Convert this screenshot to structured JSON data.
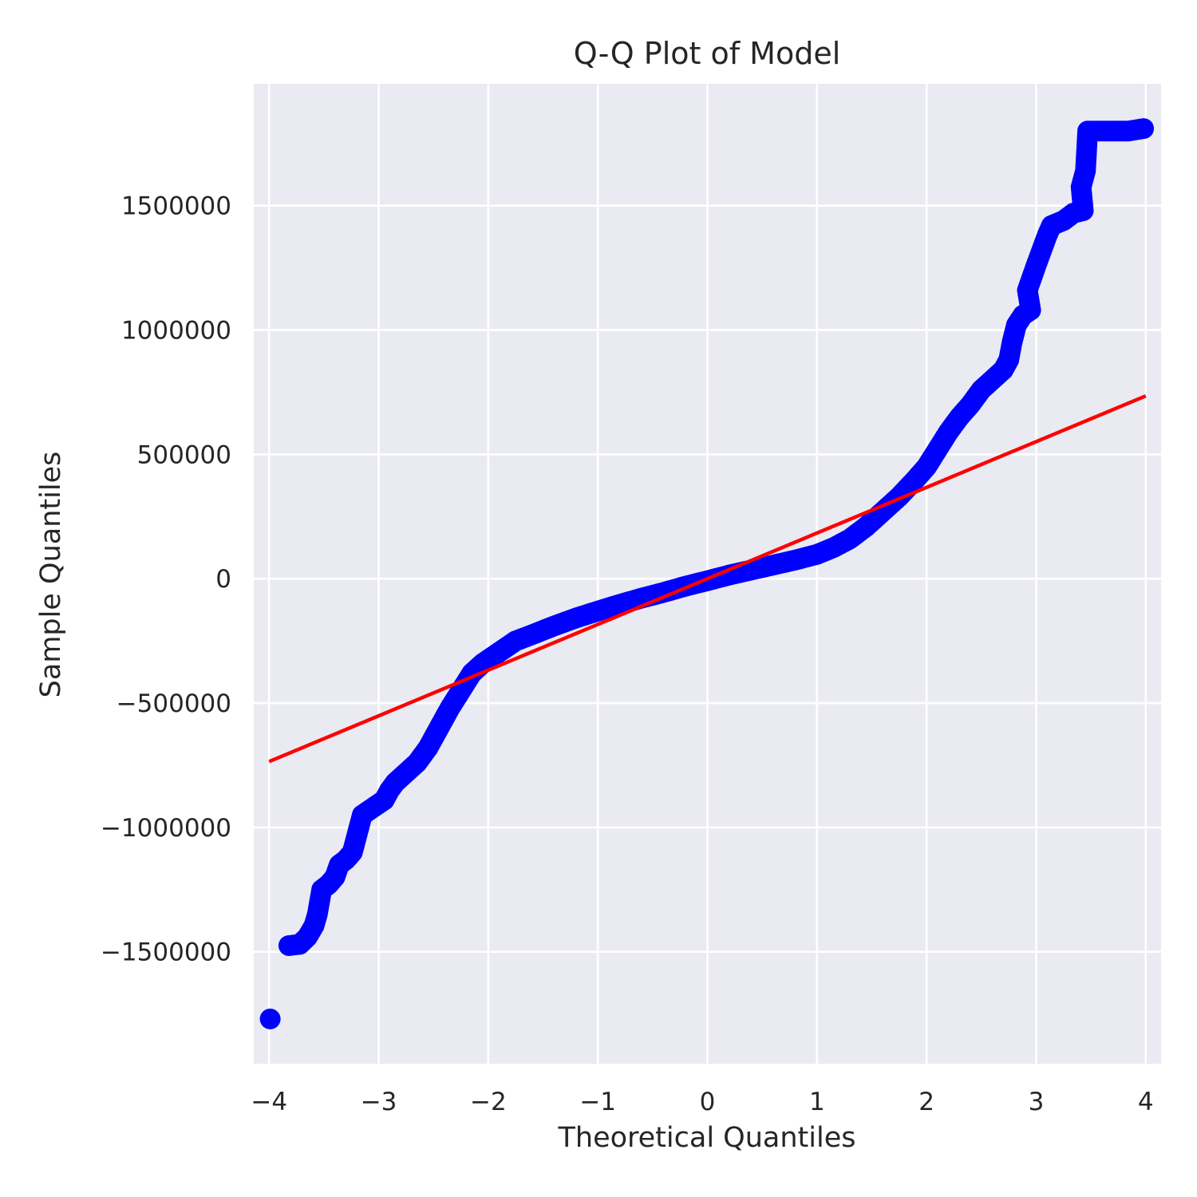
{
  "chart_data": {
    "type": "scatter",
    "title": "Q-Q Plot of Model",
    "xlabel": "Theoretical Quantiles",
    "ylabel": "Sample Quantiles",
    "xlim": [
      -4.14,
      4.14
    ],
    "ylim": [
      -1950000,
      1990000
    ],
    "xticks": [
      -4,
      -3,
      -2,
      -1,
      0,
      1,
      2,
      3,
      4
    ],
    "xtick_labels": [
      "−4",
      "−3",
      "−2",
      "−1",
      "0",
      "1",
      "2",
      "3",
      "4"
    ],
    "yticks": [
      -1500000,
      -1000000,
      -500000,
      0,
      500000,
      1000000,
      1500000
    ],
    "ytick_labels": [
      "−1500000",
      "−1000000",
      "−500000",
      "0",
      "500000",
      "1000000",
      "1500000"
    ],
    "grid": true,
    "colors": {
      "background": "#eaeaf2",
      "grid": "#ffffff",
      "points": "#0000ff",
      "line": "#ff0000"
    },
    "points": [
      [
        -3.99,
        -1770000
      ],
      [
        -3.82,
        -1475000
      ],
      [
        -3.72,
        -1470000
      ],
      [
        -3.65,
        -1440000
      ],
      [
        -3.59,
        -1395000
      ],
      [
        -3.56,
        -1350000
      ],
      [
        -3.54,
        -1300000
      ],
      [
        -3.52,
        -1250000
      ],
      [
        -3.46,
        -1230000
      ],
      [
        -3.4,
        -1200000
      ],
      [
        -3.36,
        -1150000
      ],
      [
        -3.3,
        -1130000
      ],
      [
        -3.24,
        -1100000
      ],
      [
        -3.21,
        -1050000
      ],
      [
        -3.18,
        -1000000
      ],
      [
        -3.15,
        -950000
      ],
      [
        -3.05,
        -920000
      ],
      [
        -2.95,
        -890000
      ],
      [
        -2.9,
        -850000
      ],
      [
        -2.85,
        -820000
      ],
      [
        -2.75,
        -780000
      ],
      [
        -2.65,
        -740000
      ],
      [
        -2.55,
        -680000
      ],
      [
        -2.45,
        -600000
      ],
      [
        -2.35,
        -520000
      ],
      [
        -2.25,
        -450000
      ],
      [
        -2.15,
        -380000
      ],
      [
        -2.05,
        -340000
      ],
      [
        -1.95,
        -310000
      ],
      [
        -1.85,
        -280000
      ],
      [
        -1.75,
        -250000
      ],
      [
        -1.6,
        -225000
      ],
      [
        -1.4,
        -190000
      ],
      [
        -1.2,
        -158000
      ],
      [
        -1.0,
        -130000
      ],
      [
        -0.8,
        -103000
      ],
      [
        -0.6,
        -78000
      ],
      [
        -0.4,
        -55000
      ],
      [
        -0.2,
        -30000
      ],
      [
        0.0,
        -8000
      ],
      [
        0.2,
        15000
      ],
      [
        0.4,
        35000
      ],
      [
        0.6,
        55000
      ],
      [
        0.8,
        75000
      ],
      [
        1.0,
        98000
      ],
      [
        1.15,
        125000
      ],
      [
        1.3,
        160000
      ],
      [
        1.45,
        210000
      ],
      [
        1.6,
        270000
      ],
      [
        1.75,
        330000
      ],
      [
        1.9,
        400000
      ],
      [
        2.0,
        450000
      ],
      [
        2.1,
        520000
      ],
      [
        2.2,
        590000
      ],
      [
        2.3,
        650000
      ],
      [
        2.4,
        700000
      ],
      [
        2.5,
        760000
      ],
      [
        2.6,
        800000
      ],
      [
        2.7,
        840000
      ],
      [
        2.75,
        880000
      ],
      [
        2.78,
        950000
      ],
      [
        2.82,
        1020000
      ],
      [
        2.88,
        1060000
      ],
      [
        2.95,
        1080000
      ],
      [
        2.92,
        1160000
      ],
      [
        2.96,
        1210000
      ],
      [
        3.0,
        1260000
      ],
      [
        3.05,
        1320000
      ],
      [
        3.1,
        1380000
      ],
      [
        3.14,
        1420000
      ],
      [
        3.25,
        1440000
      ],
      [
        3.34,
        1470000
      ],
      [
        3.43,
        1480000
      ],
      [
        3.41,
        1575000
      ],
      [
        3.45,
        1640000
      ],
      [
        3.47,
        1800000
      ],
      [
        3.55,
        1800000
      ],
      [
        3.65,
        1800000
      ],
      [
        3.75,
        1800000
      ],
      [
        3.84,
        1800000
      ],
      [
        3.98,
        1810000
      ]
    ],
    "fit_line": {
      "x": [
        -4.0,
        4.0
      ],
      "y": [
        -735000,
        735000
      ]
    }
  }
}
